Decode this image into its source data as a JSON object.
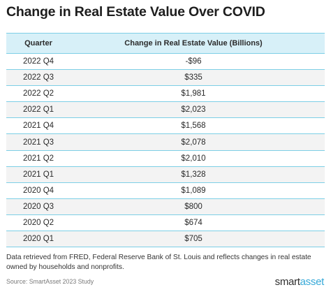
{
  "title": "Change in Real Estate Value Over COVID",
  "chart_data": {
    "type": "table",
    "columns": [
      "Quarter",
      "Change in Real Estate Value (Billions)"
    ],
    "rows": [
      {
        "quarter": "2022 Q4",
        "value_text": "-$96",
        "value": -96
      },
      {
        "quarter": "2022 Q3",
        "value_text": "$335",
        "value": 335
      },
      {
        "quarter": "2022 Q2",
        "value_text": "$1,981",
        "value": 1981
      },
      {
        "quarter": "2022 Q1",
        "value_text": "$2,023",
        "value": 2023
      },
      {
        "quarter": "2021 Q4",
        "value_text": "$1,568",
        "value": 1568
      },
      {
        "quarter": "2021 Q3",
        "value_text": "$2,078",
        "value": 2078
      },
      {
        "quarter": "2021 Q2",
        "value_text": "$2,010",
        "value": 2010
      },
      {
        "quarter": "2021 Q1",
        "value_text": "$1,328",
        "value": 1328
      },
      {
        "quarter": "2020 Q4",
        "value_text": "$1,089",
        "value": 1089
      },
      {
        "quarter": "2020 Q3",
        "value_text": "$800",
        "value": 800
      },
      {
        "quarter": "2020 Q2",
        "value_text": "$674",
        "value": 674
      },
      {
        "quarter": "2020 Q1",
        "value_text": "$705",
        "value": 705
      }
    ]
  },
  "note": "Data retrieved from FRED, Federal Reserve Bank of St. Louis and reflects changes in real estate owned by households and nonprofits.",
  "source": "Source: SmartAsset 2023 Study",
  "logo": {
    "part1": "smart",
    "part2": "asset"
  },
  "colors": {
    "header_bg": "#d7f0f8",
    "rule": "#7dcfe6",
    "alt_row": "#f3f3f3",
    "brand_blue": "#36a9d8"
  }
}
